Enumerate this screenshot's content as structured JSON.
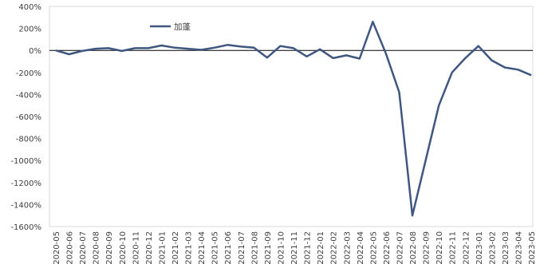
{
  "chart_data": {
    "type": "line",
    "title": "",
    "xlabel": "",
    "ylabel": "",
    "ylim": [
      -1600,
      400
    ],
    "y_ticks": [
      400,
      200,
      0,
      -200,
      -400,
      -600,
      -800,
      -1000,
      -1200,
      -1400,
      -1600
    ],
    "y_tick_labels": [
      "400%",
      "200%",
      "0%",
      "-200%",
      "-400%",
      "-600%",
      "-800%",
      "-1000%",
      "-1200%",
      "-1400%",
      "-1600%"
    ],
    "x_tick_labels": [
      "2020-05",
      "2020-06",
      "2020-07",
      "2020-08",
      "2020-09",
      "2020-10",
      "2020-11",
      "2020-12",
      "2021-01",
      "2021-02",
      "2021-03",
      "2021-04",
      "2021-05",
      "2021-06",
      "2021-07",
      "2021-08",
      "2021-09",
      "2021-10",
      "2021-11",
      "2021-12",
      "2022-01",
      "2022-02",
      "2022-03",
      "2022-04",
      "2022-05",
      "2022-06",
      "2022-07",
      "2022-08",
      "2022-09",
      "2022-10",
      "2022-11",
      "2022-12",
      "2023-01",
      "2023-02",
      "2023-03",
      "2023-04",
      "2023-05"
    ],
    "legend": {
      "position": "top-left",
      "entries": [
        "加蓬"
      ]
    },
    "grid": false,
    "colors": {
      "series": "#3f5780",
      "axis": "#000000",
      "frame": "#d9d9d9"
    },
    "series": [
      {
        "name": "加蓬",
        "values": [
          0,
          -35,
          -5,
          15,
          20,
          -5,
          20,
          20,
          45,
          25,
          15,
          5,
          25,
          50,
          35,
          25,
          -65,
          40,
          20,
          -55,
          10,
          -70,
          -45,
          -75,
          260,
          -30,
          -380,
          -1500,
          -1000,
          -500,
          -200,
          -70,
          40,
          -90,
          -155,
          -175,
          -225
        ]
      }
    ]
  }
}
